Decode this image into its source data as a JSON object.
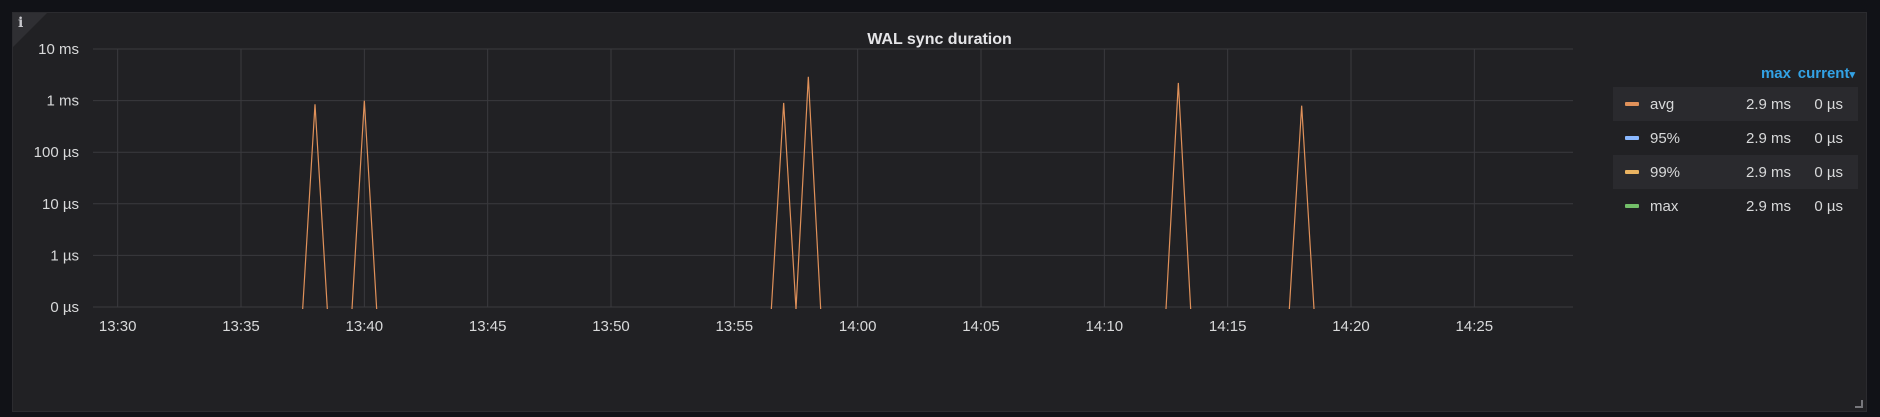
{
  "panel": {
    "title": "WAL sync duration",
    "info_icon": "info-icon"
  },
  "legend": {
    "header_max": "max",
    "header_current": "current",
    "rows": [
      {
        "name": "avg",
        "max": "2.9 ms",
        "current": "0 µs",
        "color": "#e0915a"
      },
      {
        "name": "95%",
        "max": "2.9 ms",
        "current": "0 µs",
        "color": "#8ab8ff"
      },
      {
        "name": "99%",
        "max": "2.9 ms",
        "current": "0 µs",
        "color": "#eab361"
      },
      {
        "name": "max",
        "max": "2.9 ms",
        "current": "0 µs",
        "color": "#73bf69"
      }
    ]
  },
  "chart_data": {
    "type": "line",
    "title": "WAL sync duration",
    "y_scale": "log",
    "y_ticks": [
      "10 ms",
      "1 ms",
      "100 µs",
      "10 µs",
      "1 µs",
      "0 µs"
    ],
    "x_ticks": [
      "13:30",
      "13:35",
      "13:40",
      "13:45",
      "13:50",
      "13:55",
      "14:00",
      "14:05",
      "14:10",
      "14:15",
      "14:20",
      "14:25"
    ],
    "x_range": [
      "13:29",
      "14:29"
    ],
    "grid": true,
    "legend_position": "right",
    "series": [
      {
        "name": "avg",
        "color": "#e0915a",
        "peaks": [
          {
            "time": "13:38",
            "value_ms": 0.85
          },
          {
            "time": "13:40",
            "value_ms": 1.0
          },
          {
            "time": "13:57",
            "value_ms": 0.9
          },
          {
            "time": "13:58",
            "value_ms": 2.9
          },
          {
            "time": "14:13",
            "value_ms": 2.2
          },
          {
            "time": "14:18",
            "value_ms": 0.8
          }
        ]
      }
    ]
  }
}
